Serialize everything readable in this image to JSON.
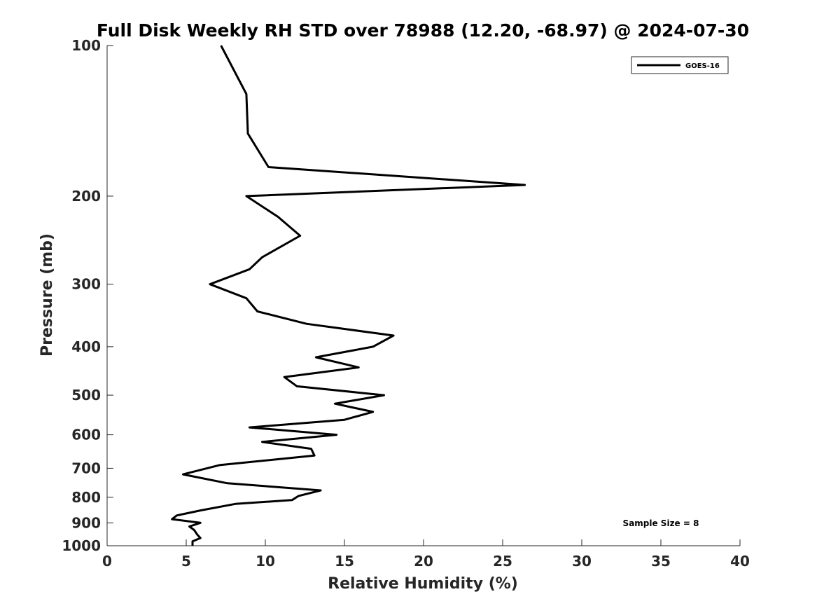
{
  "chart_data": {
    "type": "line",
    "title": "Full Disk Weekly RH STD over 78988 (12.20, -68.97) @ 2024-07-30",
    "xlabel": "Relative Humidity (%)",
    "ylabel": "Pressure (mb)",
    "xlim": [
      0,
      40
    ],
    "ylim": [
      100,
      1000
    ],
    "y_scale": "log",
    "y_reversed": true,
    "grid": false,
    "legend_position": "top-right",
    "x_ticks": [
      0,
      5,
      10,
      15,
      20,
      25,
      30,
      35,
      40
    ],
    "x_tick_labels": [
      "0",
      "5",
      "10",
      "15",
      "20",
      "25",
      "30",
      "35",
      "40"
    ],
    "y_ticks": [
      100,
      200,
      300,
      400,
      500,
      600,
      700,
      800,
      900,
      1000
    ],
    "y_tick_labels": [
      "100",
      "200",
      "300",
      "400",
      "500",
      "600",
      "700",
      "800",
      "900",
      "1000"
    ],
    "series": [
      {
        "name": "GOES-16",
        "color": "#000000",
        "points": [
          [
            7.2,
            100
          ],
          [
            8.8,
            125
          ],
          [
            8.9,
            150
          ],
          [
            10.2,
            175
          ],
          [
            26.4,
            190
          ],
          [
            8.8,
            200
          ],
          [
            10.8,
            220
          ],
          [
            12.2,
            240
          ],
          [
            9.8,
            265
          ],
          [
            9.0,
            280
          ],
          [
            6.5,
            300
          ],
          [
            8.8,
            320
          ],
          [
            9.5,
            340
          ],
          [
            12.6,
            360
          ],
          [
            18.1,
            380
          ],
          [
            16.8,
            400
          ],
          [
            13.2,
            420
          ],
          [
            15.9,
            440
          ],
          [
            11.2,
            460
          ],
          [
            12.0,
            480
          ],
          [
            17.5,
            500
          ],
          [
            14.4,
            520
          ],
          [
            16.8,
            540
          ],
          [
            15.0,
            560
          ],
          [
            9.0,
            580
          ],
          [
            14.5,
            600
          ],
          [
            9.8,
            620
          ],
          [
            12.9,
            640
          ],
          [
            13.1,
            660
          ],
          [
            7.1,
            690
          ],
          [
            4.8,
            720
          ],
          [
            7.6,
            750
          ],
          [
            13.5,
            775
          ],
          [
            12.1,
            795
          ],
          [
            11.7,
            810
          ],
          [
            8.1,
            825
          ],
          [
            5.9,
            850
          ],
          [
            4.4,
            870
          ],
          [
            4.1,
            885
          ],
          [
            5.9,
            900
          ],
          [
            5.2,
            915
          ],
          [
            5.5,
            930
          ],
          [
            5.7,
            950
          ],
          [
            5.9,
            965
          ],
          [
            5.4,
            980
          ],
          [
            5.4,
            1000
          ]
        ]
      }
    ],
    "annotation": "Sample Size = 8"
  }
}
